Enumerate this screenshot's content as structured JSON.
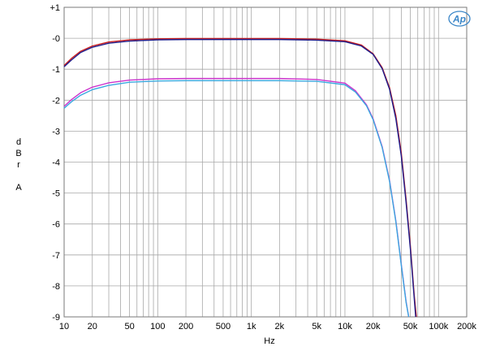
{
  "chart_data": {
    "type": "line",
    "x_scale": "log",
    "xlim": [
      10,
      200000
    ],
    "ylim": [
      -9,
      1
    ],
    "grid": true,
    "xlabel": "Hz",
    "ylabel": [
      "d",
      "B",
      "r",
      "",
      "A"
    ],
    "x_tick_labels": [
      {
        "value": 10,
        "label": "10"
      },
      {
        "value": 20,
        "label": "20"
      },
      {
        "value": 50,
        "label": "50"
      },
      {
        "value": 100,
        "label": "100"
      },
      {
        "value": 200,
        "label": "200"
      },
      {
        "value": 500,
        "label": "500"
      },
      {
        "value": 1000,
        "label": "1k"
      },
      {
        "value": 2000,
        "label": "2k"
      },
      {
        "value": 5000,
        "label": "5k"
      },
      {
        "value": 10000,
        "label": "10k"
      },
      {
        "value": 20000,
        "label": "20k"
      },
      {
        "value": 50000,
        "label": "50k"
      },
      {
        "value": 100000,
        "label": "100k"
      },
      {
        "value": 200000,
        "label": "200k"
      }
    ],
    "y_tick_labels": [
      {
        "value": 1,
        "label": "+1"
      },
      {
        "value": 0,
        "label": "-0"
      },
      {
        "value": -1,
        "label": "-1"
      },
      {
        "value": -2,
        "label": "-2"
      },
      {
        "value": -3,
        "label": "-3"
      },
      {
        "value": -4,
        "label": "-4"
      },
      {
        "value": -5,
        "label": "-5"
      },
      {
        "value": -6,
        "label": "-6"
      },
      {
        "value": -7,
        "label": "-7"
      },
      {
        "value": -8,
        "label": "-8"
      },
      {
        "value": -9,
        "label": "-9"
      }
    ],
    "series": [
      {
        "color": "#cc1f1f",
        "x": [
          10,
          12,
          15,
          20,
          30,
          50,
          100,
          200,
          500,
          1000,
          2000,
          5000,
          10000,
          15000,
          20000,
          25000,
          30000,
          35000,
          40000,
          45000,
          50000,
          55000,
          58000
        ],
        "y": [
          -0.88,
          -0.65,
          -0.42,
          -0.25,
          -0.12,
          -0.05,
          -0.02,
          -0.01,
          -0.01,
          -0.01,
          -0.01,
          -0.03,
          -0.08,
          -0.22,
          -0.5,
          -0.95,
          -1.6,
          -2.5,
          -3.7,
          -5.2,
          -6.7,
          -8.3,
          -9.0
        ]
      },
      {
        "color": "#1e1e8c",
        "x": [
          10,
          12,
          15,
          20,
          30,
          50,
          100,
          200,
          500,
          1000,
          2000,
          5000,
          10000,
          15000,
          20000,
          25000,
          30000,
          35000,
          40000,
          45000,
          50000,
          55000,
          57000
        ],
        "y": [
          -0.92,
          -0.7,
          -0.46,
          -0.29,
          -0.16,
          -0.09,
          -0.05,
          -0.04,
          -0.04,
          -0.04,
          -0.04,
          -0.06,
          -0.11,
          -0.25,
          -0.52,
          -0.98,
          -1.65,
          -2.6,
          -3.8,
          -5.3,
          -6.8,
          -8.4,
          -9.0
        ]
      },
      {
        "color": "#cc33cc",
        "x": [
          10,
          12,
          15,
          20,
          30,
          50,
          100,
          200,
          500,
          1000,
          2000,
          5000,
          10000,
          13000,
          17000,
          20000,
          25000,
          30000,
          35000,
          40000,
          45000,
          48000
        ],
        "y": [
          -2.2,
          -1.98,
          -1.76,
          -1.58,
          -1.44,
          -1.35,
          -1.31,
          -1.3,
          -1.3,
          -1.3,
          -1.3,
          -1.33,
          -1.45,
          -1.7,
          -2.15,
          -2.6,
          -3.5,
          -4.6,
          -5.9,
          -7.3,
          -8.5,
          -9.0
        ]
      },
      {
        "color": "#3aa8e0",
        "x": [
          10,
          12,
          15,
          20,
          30,
          50,
          100,
          200,
          500,
          1000,
          2000,
          5000,
          10000,
          13000,
          17000,
          20000,
          25000,
          30000,
          35000,
          40000,
          45000,
          48000
        ],
        "y": [
          -2.26,
          -2.05,
          -1.84,
          -1.66,
          -1.52,
          -1.42,
          -1.38,
          -1.37,
          -1.37,
          -1.37,
          -1.37,
          -1.39,
          -1.5,
          -1.74,
          -2.18,
          -2.63,
          -3.53,
          -4.63,
          -5.93,
          -7.33,
          -8.53,
          -9.0
        ]
      }
    ]
  },
  "logo": {
    "text": "Ap"
  }
}
